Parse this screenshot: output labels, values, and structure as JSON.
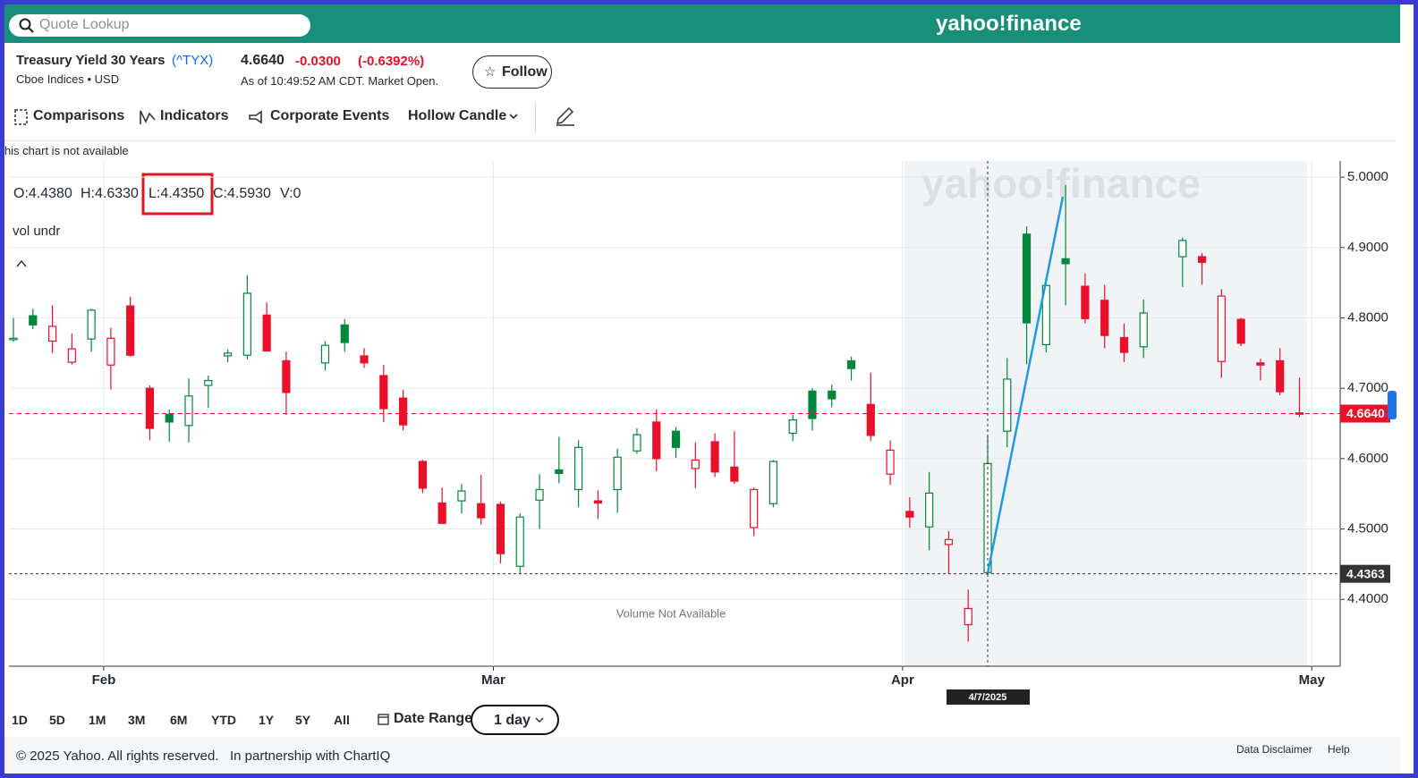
{
  "search": {
    "placeholder": "Quote Lookup"
  },
  "logo": "yahoo!finance",
  "quote": {
    "name": "Treasury Yield 30 Years",
    "symbol": "(^TYX)",
    "exchange": "Cboe Indices • USD",
    "price": "4.6640",
    "change": "-0.0300",
    "change_percent": "(-0.6392%)",
    "time": "As of 10:49:52 AM CDT. Market Open.",
    "follow": "Follow"
  },
  "toolbar": [
    "Comparisons",
    "Indicators",
    "Corporate Events",
    "Hollow Candle"
  ],
  "notice": "This chart is not available",
  "chart_data": {
    "type": "candlestick",
    "watermark": "yahoo!finance",
    "ohlc_legend": [
      "O:4.4380",
      "H:4.6330",
      "L:4.4350",
      "C:4.5930",
      "V:0"
    ],
    "study_label": "vol undr",
    "volume_note": "Volume Not Available",
    "categories": [
      null,
      null,
      null,
      null,
      null,
      null,
      null,
      null,
      null,
      null,
      null,
      null,
      null,
      null,
      null,
      null,
      null,
      null,
      null,
      null,
      null,
      null,
      null,
      null,
      null,
      null,
      null,
      null,
      null,
      null,
      null,
      null,
      null,
      null,
      null,
      null,
      null,
      null,
      null,
      null,
      null,
      null,
      null,
      null,
      null,
      null,
      null,
      null,
      null,
      null,
      "4/7/2025",
      null,
      null,
      null,
      null,
      null,
      null,
      null,
      null,
      null,
      null,
      null,
      null,
      null,
      null,
      null,
      null
    ],
    "open": [
      4.769,
      4.803,
      4.767,
      4.737,
      4.77,
      4.733,
      4.817,
      4.7,
      4.663,
      4.647,
      4.704,
      4.746,
      4.747,
      4.804,
      4.739,
      null,
      4.736,
      4.79,
      4.746,
      4.718,
      4.686,
      4.596,
      4.537,
      4.54,
      4.536,
      4.535,
      4.447,
      4.541,
      4.584,
      4.556,
      4.54,
      4.556,
      4.611,
      4.652,
      4.639,
      4.586,
      4.624,
      4.588,
      4.502,
      4.536,
      4.636,
      4.696,
      4.696,
      4.739,
      4.677,
      4.578,
      4.525,
      4.503,
      4.478,
      4.364,
      4.438,
      4.639,
      4.919,
      4.762,
      4.884,
      4.845,
      4.825,
      4.772,
      4.759,
      null,
      4.887,
      4.887,
      4.738,
      4.798,
      4.736,
      4.739,
      4.665
    ],
    "high": [
      4.8,
      4.813,
      4.818,
      4.778,
      4.813,
      4.786,
      4.83,
      4.704,
      4.67,
      4.714,
      4.718,
      4.755,
      4.861,
      4.822,
      4.752,
      null,
      4.767,
      4.798,
      4.757,
      4.733,
      4.698,
      4.598,
      4.559,
      4.564,
      4.577,
      4.539,
      4.522,
      4.578,
      4.631,
      4.626,
      4.555,
      4.614,
      4.643,
      4.67,
      4.645,
      4.623,
      4.636,
      4.639,
      4.559,
      4.598,
      4.662,
      4.7,
      4.705,
      4.745,
      4.722,
      4.626,
      4.545,
      4.581,
      4.497,
      4.414,
      4.633,
      4.743,
      4.93,
      4.85,
      4.989,
      4.863,
      4.847,
      4.792,
      4.826,
      null,
      4.914,
      4.892,
      4.841,
      4.8,
      4.742,
      4.757,
      4.715
    ],
    "low": [
      4.766,
      4.784,
      4.75,
      4.734,
      4.752,
      4.698,
      4.745,
      4.626,
      4.624,
      4.623,
      4.672,
      4.737,
      4.741,
      4.753,
      4.662,
      null,
      4.725,
      4.752,
      4.729,
      4.652,
      4.64,
      4.551,
      4.507,
      4.522,
      4.506,
      4.451,
      4.437,
      4.5,
      4.565,
      4.531,
      4.514,
      4.523,
      4.607,
      4.582,
      4.601,
      4.558,
      4.574,
      4.564,
      4.49,
      4.531,
      4.625,
      4.64,
      4.673,
      4.711,
      4.625,
      4.563,
      4.502,
      4.47,
      4.437,
      4.34,
      4.435,
      4.616,
      4.734,
      4.751,
      4.818,
      4.792,
      4.757,
      4.737,
      4.743,
      null,
      4.844,
      4.847,
      4.715,
      4.76,
      4.711,
      4.69,
      4.659
    ],
    "close": [
      4.771,
      4.79,
      4.788,
      4.756,
      4.811,
      4.771,
      4.747,
      4.643,
      4.652,
      4.689,
      4.711,
      4.75,
      4.835,
      4.753,
      4.694,
      null,
      4.761,
      4.765,
      4.736,
      4.671,
      4.648,
      4.558,
      4.508,
      4.554,
      4.516,
      4.465,
      4.517,
      4.556,
      4.579,
      4.616,
      4.537,
      4.602,
      4.634,
      4.6,
      4.616,
      4.598,
      4.581,
      4.568,
      4.556,
      4.596,
      4.655,
      4.657,
      4.685,
      4.728,
      4.633,
      4.612,
      4.517,
      4.551,
      4.485,
      4.387,
      4.593,
      4.713,
      4.793,
      4.846,
      4.877,
      4.799,
      4.775,
      4.751,
      4.807,
      null,
      4.91,
      4.879,
      4.831,
      4.764,
      4.733,
      4.695,
      4.664
    ],
    "up_color": "#00873c",
    "down_color": "#eb0f29",
    "ylim": [
      4.305,
      5.023
    ],
    "yticks": [
      {
        "value": 4.4,
        "label": "4.4000"
      },
      {
        "value": 4.5,
        "label": "4.5000"
      },
      {
        "value": 4.6,
        "label": "4.6000"
      },
      {
        "value": 4.7,
        "label": "4.7000"
      },
      {
        "value": 4.8,
        "label": "4.8000"
      },
      {
        "value": 4.9,
        "label": "4.9000"
      },
      {
        "value": 5,
        "label": "5.0000"
      }
    ],
    "xticks": [
      {
        "value": 5,
        "label": "Feb"
      },
      {
        "value": 25,
        "label": "Mar"
      },
      {
        "value": 46,
        "label": "Apr"
      },
      {
        "value": 67,
        "label": "May"
      }
    ],
    "last_price": {
      "value": 4.664,
      "label": "4.6640"
    },
    "crosshair": 4.4363,
    "grid": true
  },
  "ranges": [
    "1D",
    "5D",
    "1M",
    "3M",
    "6M",
    "YTD",
    "1Y",
    "5Y",
    "All"
  ],
  "date_range": "Date Range",
  "interval": "1 day",
  "footer": {
    "copyright": "© 2025 Yahoo. All rights reserved.",
    "partner": "In partnership with ChartIQ",
    "disclaimer": "Data Disclaimer",
    "help": "Help"
  }
}
